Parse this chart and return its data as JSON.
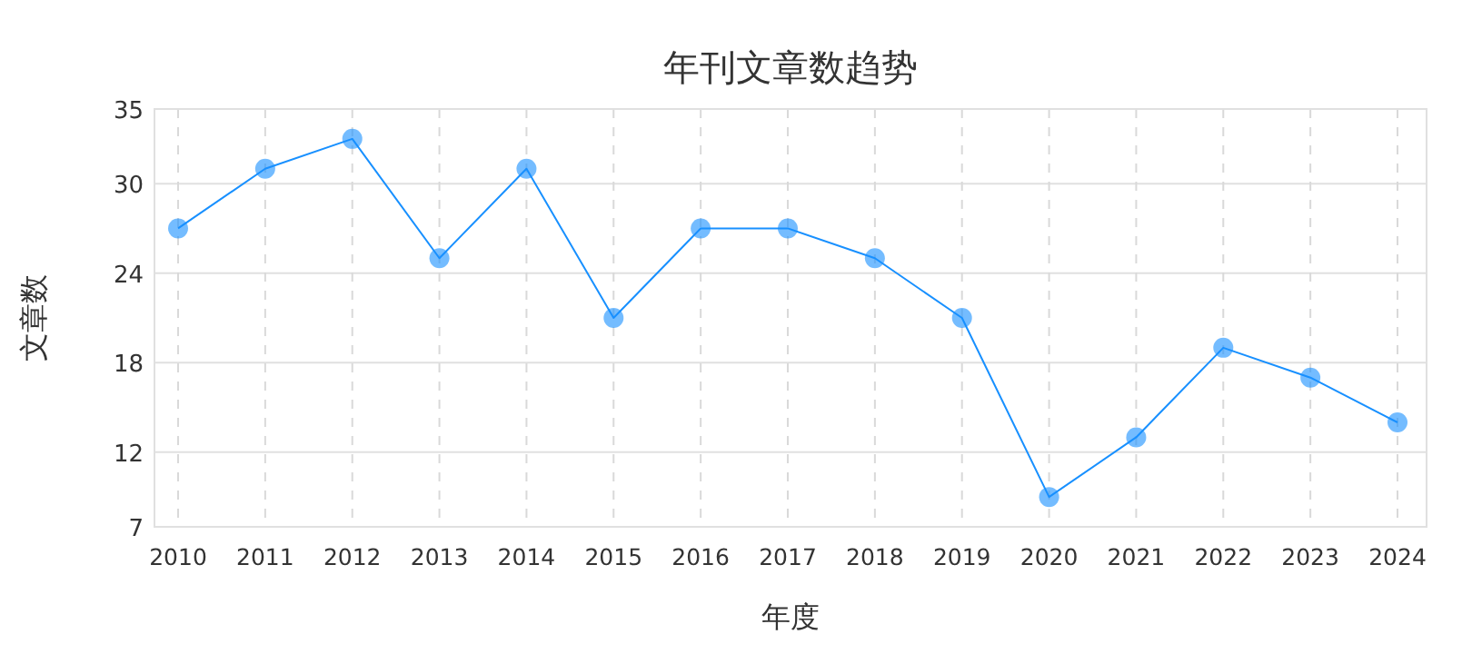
{
  "chart_data": {
    "type": "line",
    "title": "年刊文章数趋势",
    "xlabel": "年度",
    "ylabel": "文章数",
    "categories": [
      "2010",
      "2011",
      "2012",
      "2013",
      "2014",
      "2015",
      "2016",
      "2017",
      "2018",
      "2019",
      "2020",
      "2021",
      "2022",
      "2023",
      "2024"
    ],
    "series": [
      {
        "color": "#1890ff",
        "values": [
          27,
          31,
          33,
          25,
          31,
          21,
          27,
          27,
          25,
          21,
          9,
          13,
          19,
          17,
          14
        ]
      }
    ],
    "ylim": [
      7,
      35
    ],
    "yticks": [
      7,
      12,
      18,
      24,
      30,
      35
    ],
    "grid": true,
    "marker": "circle",
    "line_style": "solid"
  }
}
